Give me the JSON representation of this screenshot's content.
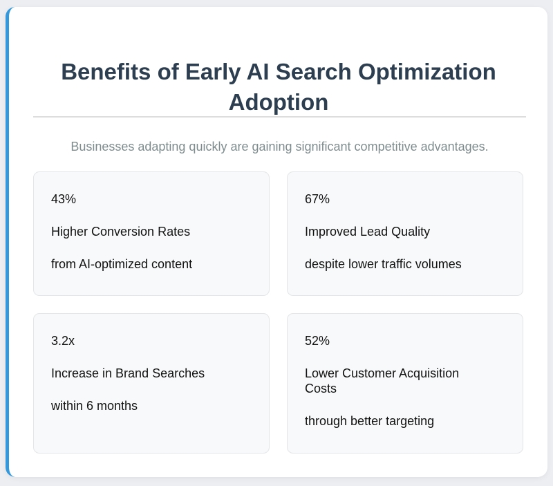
{
  "title": "Benefits of Early AI Search Optimization Adoption",
  "subtitle": "Businesses adapting quickly are gaining significant competitive advantages.",
  "accent": "#3498db",
  "stats": [
    {
      "value": "43%",
      "label": "Higher Conversion Rates",
      "detail": "from AI-optimized content"
    },
    {
      "value": "67%",
      "label": "Improved Lead Quality",
      "detail": "despite lower traffic volumes"
    },
    {
      "value": "3.2x",
      "label": "Increase in Brand Searches",
      "detail": "within 6 months"
    },
    {
      "value": "52%",
      "label": "Lower Customer Acquisition Costs",
      "detail": "through better targeting"
    }
  ]
}
